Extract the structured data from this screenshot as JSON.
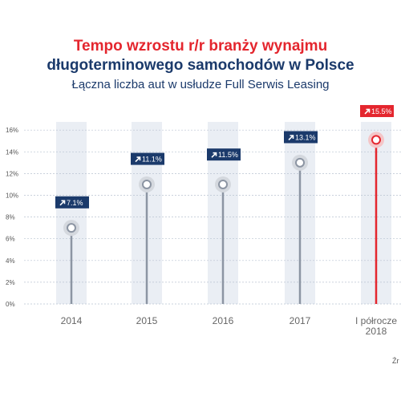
{
  "header": {
    "title_line1": "Tempo wzrostu r/r branży wynajmu",
    "title_line2": "długoterminowego samochodów w Polsce",
    "subtitle": "Łączna liczba aut w usłudze Full Serwis Leasing"
  },
  "source_fragment": "Źr",
  "colors": {
    "navy": "#1b3a6b",
    "red": "#e4262e",
    "gray_line": "#8c95a3",
    "band": "#eaeef4"
  },
  "chart_data": {
    "type": "line",
    "categories": [
      "2014",
      "2015",
      "2016",
      "2017",
      "I półrocze\n2018"
    ],
    "values": [
      7.1,
      11.1,
      11.5,
      13.1,
      15.5
    ],
    "marker_values": [
      7.0,
      11.0,
      11.0,
      13.0,
      15.1
    ],
    "labels": [
      "7.1%",
      "11.1%",
      "11.5%",
      "13.1%",
      "15.5%"
    ],
    "highlight_index": 4,
    "yticks": [
      "0%",
      "2%",
      "4%",
      "6%",
      "8%",
      "10%",
      "12%",
      "14%",
      "16%"
    ],
    "ylim": [
      0,
      16
    ],
    "grid": true,
    "xlabel": "",
    "ylabel": ""
  }
}
